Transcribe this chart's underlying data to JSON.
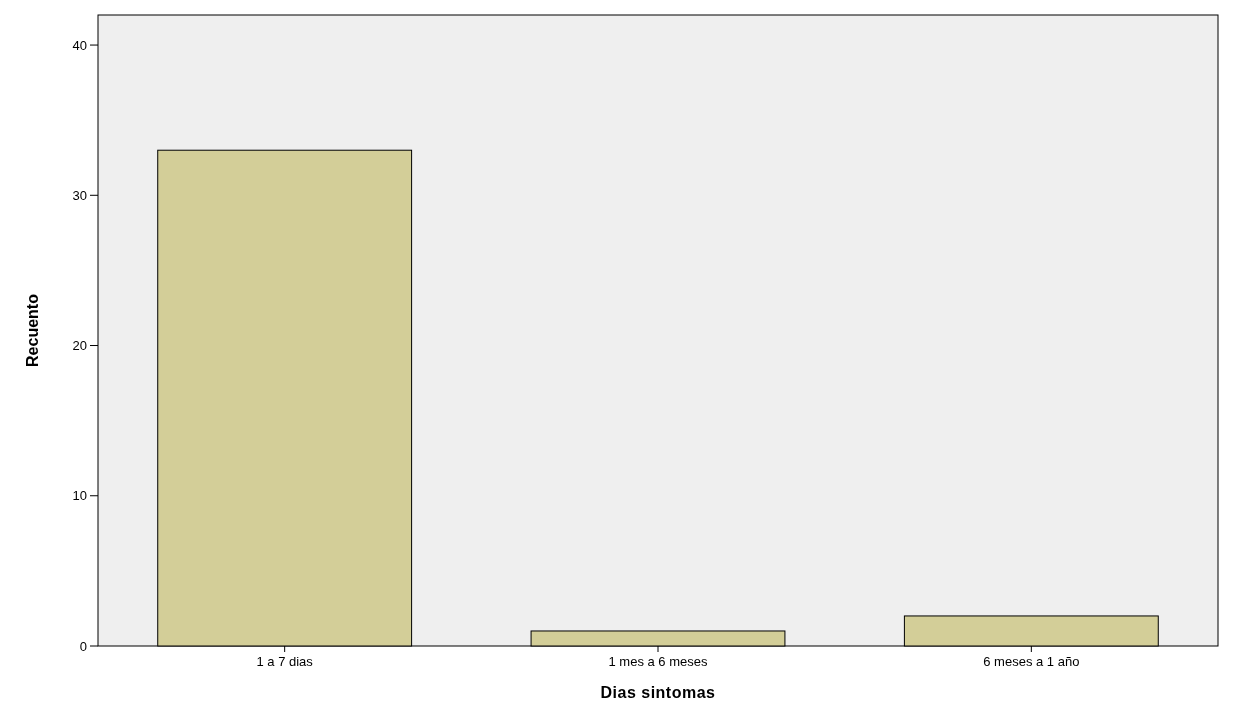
{
  "chart_data": {
    "type": "bar",
    "xlabel": "Dias sintomas",
    "ylabel": "Recuento",
    "categories": [
      "1 a 7 dias",
      "1 mes a 6 meses",
      "6 meses a 1 año"
    ],
    "values": [
      33,
      1,
      2
    ],
    "color": "#d3ce98",
    "ylim": [
      0,
      42
    ],
    "yticks": [
      0,
      10,
      20,
      30,
      40
    ],
    "grid": false
  }
}
